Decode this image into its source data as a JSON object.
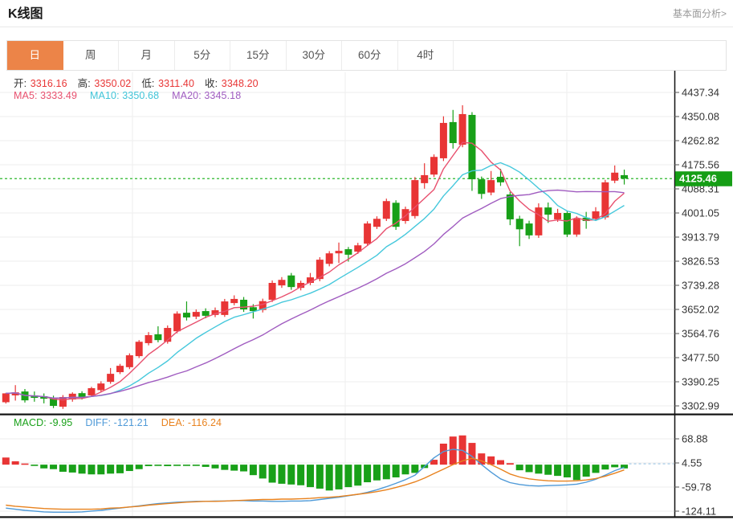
{
  "header": {
    "title": "K线图",
    "analysis_link": "基本面分析>"
  },
  "tabs": [
    {
      "label": "日",
      "selected": true
    },
    {
      "label": "周",
      "selected": false
    },
    {
      "label": "月",
      "selected": false
    },
    {
      "label": "5分",
      "selected": false
    },
    {
      "label": "15分",
      "selected": false
    },
    {
      "label": "30分",
      "selected": false
    },
    {
      "label": "60分",
      "selected": false
    },
    {
      "label": "4时",
      "selected": false
    }
  ],
  "info_bar": {
    "value_color": "#e83535",
    "ohlc": [
      {
        "key": "open",
        "label": "开:",
        "value": "3316.16"
      },
      {
        "key": "high",
        "label": "高:",
        "value": "3350.02"
      },
      {
        "key": "low",
        "label": "低:",
        "value": "3311.40"
      },
      {
        "key": "close",
        "label": "收:",
        "value": "3348.20"
      }
    ],
    "ma": [
      {
        "key": "ma5",
        "label": "MA5:",
        "value": "3333.49",
        "color": "#e8506e"
      },
      {
        "key": "ma10",
        "label": "MA10:",
        "value": "3350.68",
        "color": "#40c4d8"
      },
      {
        "key": "ma20",
        "label": "MA20:",
        "value": "3345.18",
        "color": "#a05cc0"
      }
    ]
  },
  "macd_bar": {
    "items": [
      {
        "key": "macd",
        "label": "MACD:",
        "value": "-9.95",
        "color": "#18a018"
      },
      {
        "key": "diff",
        "label": "DIFF:",
        "value": "-121.21",
        "color": "#4f9ad8"
      },
      {
        "key": "dea",
        "label": "DEA:",
        "value": "-116.24",
        "color": "#e8821e"
      }
    ]
  },
  "price_marker": {
    "value": "4125.46",
    "bg": "#169e16"
  },
  "colors": {
    "up": "#e83535",
    "down": "#18a018",
    "dashed_level_line": "#2db82d",
    "grid": "#ededed",
    "axis": "#111111",
    "tick_text": "#333333",
    "diff_line": "#4f9ad8",
    "dea_line": "#e8821e",
    "ma5_line": "#e8506e",
    "ma10_line": "#45c8dc",
    "ma20_line": "#a05cc0",
    "tab_selected_bg": "#ec8448"
  },
  "chart_data": [
    {
      "type": "candlestick",
      "title": "K线图 日K with MA5/MA10/MA20 overlays",
      "grid": true,
      "legend_position": "top-left",
      "ma_periods": [
        5,
        10,
        20
      ],
      "last_price": 4125.46,
      "ylim": [
        3276,
        4510
      ],
      "y_ticks": [
        "4437.34",
        "4350.08",
        "4262.82",
        "4175.56",
        "4088.31",
        "4001.05",
        "3913.79",
        "3826.53",
        "3739.28",
        "3652.02",
        "3564.76",
        "3477.50",
        "3390.25",
        "3302.99"
      ],
      "candles": [
        [
          3316.16,
          3350.02,
          3311.4,
          3348.2
        ],
        [
          3341,
          3378,
          3322,
          3352
        ],
        [
          3355,
          3364,
          3315,
          3323
        ],
        [
          3341,
          3355,
          3318,
          3332
        ],
        [
          3338,
          3348,
          3312,
          3329
        ],
        [
          3332,
          3340,
          3295,
          3303
        ],
        [
          3300,
          3342,
          3292,
          3335
        ],
        [
          3326,
          3352,
          3318,
          3347
        ],
        [
          3349,
          3356,
          3326,
          3334
        ],
        [
          3341,
          3372,
          3335,
          3367
        ],
        [
          3360,
          3392,
          3354,
          3384
        ],
        [
          3390,
          3440,
          3383,
          3419
        ],
        [
          3425,
          3455,
          3418,
          3448
        ],
        [
          3443,
          3493,
          3436,
          3486
        ],
        [
          3483,
          3541,
          3476,
          3535
        ],
        [
          3530,
          3570,
          3522,
          3559
        ],
        [
          3562,
          3591,
          3533,
          3541
        ],
        [
          3535,
          3594,
          3528,
          3585
        ],
        [
          3573,
          3645,
          3566,
          3637
        ],
        [
          3640,
          3681,
          3612,
          3623
        ],
        [
          3626,
          3652,
          3617,
          3643
        ],
        [
          3646,
          3656,
          3620,
          3629
        ],
        [
          3632,
          3659,
          3624,
          3649
        ],
        [
          3632,
          3690,
          3625,
          3681
        ],
        [
          3675,
          3703,
          3667,
          3690
        ],
        [
          3687,
          3697,
          3643,
          3652
        ],
        [
          3660,
          3671,
          3619,
          3646
        ],
        [
          3650,
          3691,
          3641,
          3682
        ],
        [
          3687,
          3757,
          3679,
          3748
        ],
        [
          3739,
          3769,
          3730,
          3759
        ],
        [
          3775,
          3784,
          3723,
          3733
        ],
        [
          3730,
          3756,
          3721,
          3748
        ],
        [
          3748,
          3784,
          3740,
          3768
        ],
        [
          3762,
          3841,
          3754,
          3832
        ],
        [
          3817,
          3863,
          3808,
          3855
        ],
        [
          3855,
          3894,
          3820,
          3864
        ],
        [
          3870,
          3878,
          3825,
          3850
        ],
        [
          3861,
          3893,
          3853,
          3884
        ],
        [
          3890,
          3971,
          3882,
          3963
        ],
        [
          3951,
          3989,
          3943,
          3980
        ],
        [
          3980,
          4053,
          3972,
          4044
        ],
        [
          4038,
          4047,
          3940,
          3951
        ],
        [
          3972,
          4024,
          3962,
          4015
        ],
        [
          3990,
          4131,
          3981,
          4120
        ],
        [
          4109,
          4181,
          4089,
          4138
        ],
        [
          4140,
          4213,
          4131,
          4204
        ],
        [
          4199,
          4351,
          4189,
          4327
        ],
        [
          4330,
          4374,
          4234,
          4254
        ],
        [
          4248,
          4391,
          4239,
          4359
        ],
        [
          4356,
          4366,
          4081,
          4123
        ],
        [
          4123,
          4133,
          4052,
          4070
        ],
        [
          4075,
          4153,
          4065,
          4120
        ],
        [
          4132,
          4161,
          4099,
          4112
        ],
        [
          4068,
          4077,
          3957,
          3978
        ],
        [
          3980,
          3991,
          3881,
          3942
        ],
        [
          3963,
          3973,
          3907,
          3920
        ],
        [
          3920,
          4036,
          3911,
          4021
        ],
        [
          4021,
          4039,
          3965,
          3995
        ],
        [
          3978,
          4016,
          3969,
          4001
        ],
        [
          4001,
          4009,
          3914,
          3923
        ],
        [
          3923,
          3989,
          3915,
          3980
        ],
        [
          3984,
          4005,
          3944,
          3972
        ],
        [
          3980,
          4022,
          3972,
          4007
        ],
        [
          3985,
          4121,
          3977,
          4112
        ],
        [
          4118,
          4173,
          4109,
          4147
        ],
        [
          4138,
          4158,
          4104,
          4125.46
        ]
      ]
    },
    {
      "type": "bar",
      "subtype": "macd",
      "title": "MACD histogram with DIFF/DEA lines",
      "y_ticks": [
        "68.88",
        "4.55",
        "-59.78",
        "-124.11"
      ],
      "ylim": [
        -155,
        100
      ],
      "bars": [
        19,
        9,
        3,
        -3,
        -10,
        -12,
        -19,
        -21,
        -24,
        -26,
        -26,
        -24,
        -23,
        -17,
        -12,
        -4,
        -3,
        -4,
        -2,
        -1,
        -3,
        -6,
        -10,
        -14,
        -16,
        -18,
        -28,
        -37,
        -48,
        -51,
        -53,
        -55,
        -60,
        -64,
        -69,
        -66,
        -60,
        -56,
        -47,
        -42,
        -39,
        -34,
        -26,
        -22,
        -9,
        13,
        56,
        75,
        78,
        58,
        30,
        22,
        12,
        4,
        -15,
        -20,
        -24,
        -27,
        -30,
        -34,
        -41,
        -32,
        -22,
        -13,
        -7,
        -10
      ],
      "series": [
        {
          "name": "DIFF",
          "values": [
            -116,
            -119,
            -122,
            -124,
            -126,
            -127,
            -127,
            -127,
            -126,
            -124,
            -122,
            -119,
            -116,
            -113,
            -110,
            -107,
            -104,
            -102,
            -100,
            -99,
            -98,
            -98,
            -97,
            -97,
            -96,
            -96,
            -97,
            -97,
            -98,
            -98,
            -97,
            -97,
            -96,
            -93,
            -90,
            -87,
            -83,
            -79,
            -74,
            -67,
            -59,
            -50,
            -40,
            -28,
            -5,
            18,
            35,
            41,
            38,
            22,
            0,
            -20,
            -38,
            -48,
            -53,
            -56,
            -57,
            -56,
            -55,
            -54,
            -52,
            -47,
            -39,
            -28,
            -16,
            -7
          ]
        },
        {
          "name": "DEA",
          "values": [
            -108,
            -111,
            -113,
            -115,
            -117,
            -118,
            -119,
            -119,
            -119,
            -119,
            -118,
            -116,
            -115,
            -113,
            -111,
            -108,
            -106,
            -104,
            -102,
            -100,
            -99,
            -98,
            -98,
            -97,
            -96,
            -95,
            -94,
            -93,
            -93,
            -92,
            -92,
            -91,
            -90,
            -88,
            -87,
            -85,
            -82,
            -79,
            -76,
            -72,
            -67,
            -61,
            -54,
            -46,
            -36,
            -24,
            -12,
            0,
            10,
            17,
            10,
            0,
            -12,
            -25,
            -33,
            -38,
            -41,
            -43,
            -44,
            -44,
            -43,
            -41,
            -37,
            -31,
            -23,
            -14
          ]
        }
      ]
    }
  ]
}
